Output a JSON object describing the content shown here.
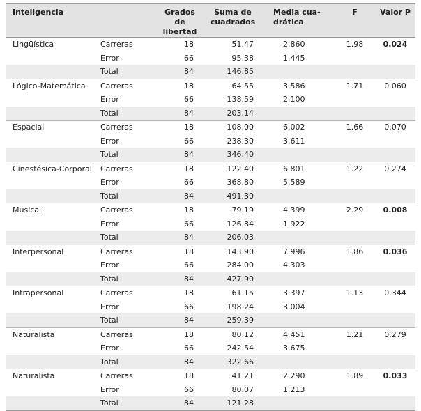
{
  "table": {
    "headers": [
      "Inteligencia",
      "Grados de libertad",
      "Suma de cuadrados",
      "Media cua-\ndrática",
      "F",
      "Valor P"
    ],
    "groups": [
      {
        "name": "Lingüística",
        "rows": [
          {
            "label": "Carreras",
            "df": "18",
            "ss": "51.47",
            "ms": "2.860"
          },
          {
            "label": "Error",
            "df": "66",
            "ss": "95.38",
            "ms": "1.445"
          },
          {
            "label": "Total",
            "df": "84",
            "ss": "146.85"
          }
        ],
        "f": "1.98",
        "p": "0.024",
        "p_bold": true
      },
      {
        "name": "Lógico-Matemática",
        "rows": [
          {
            "label": "Carreras",
            "df": "18",
            "ss": "64.55",
            "ms": "3.586"
          },
          {
            "label": "Error",
            "df": "66",
            "ss": "138.59",
            "ms": "2.100"
          },
          {
            "label": "Total",
            "df": "84",
            "ss": "203.14"
          }
        ],
        "f": "1.71",
        "p": "0.060",
        "p_bold": false
      },
      {
        "name": "Espacial",
        "rows": [
          {
            "label": "Carreras",
            "df": "18",
            "ss": "108.00",
            "ms": "6.002"
          },
          {
            "label": "Error",
            "df": "66",
            "ss": "238.30",
            "ms": "3.611"
          },
          {
            "label": "Total",
            "df": "84",
            "ss": "346.40"
          }
        ],
        "f": "1.66",
        "p": "0.070",
        "p_bold": false
      },
      {
        "name": "Cinestésica-Corporal",
        "rows": [
          {
            "label": "Carreras",
            "df": "18",
            "ss": "122.40",
            "ms": "6.801"
          },
          {
            "label": "Error",
            "df": "66",
            "ss": "368.80",
            "ms": "5.589"
          },
          {
            "label": "Total",
            "df": "84",
            "ss": "491.30"
          }
        ],
        "f": "1.22",
        "p": "0.274",
        "p_bold": false
      },
      {
        "name": "Musical",
        "rows": [
          {
            "label": "Carreras",
            "df": "18",
            "ss": "79.19",
            "ms": "4.399"
          },
          {
            "label": "Error",
            "df": "66",
            "ss": "126.84",
            "ms": "1.922"
          },
          {
            "label": "Total",
            "df": "84",
            "ss": "206.03"
          }
        ],
        "f": "2.29",
        "p": "0.008",
        "p_bold": true
      },
      {
        "name": "Interpersonal",
        "rows": [
          {
            "label": "Carreras",
            "df": "18",
            "ss": "143.90",
            "ms": "7.996"
          },
          {
            "label": "Error",
            "df": "66",
            "ss": "284.00",
            "ms": "4.303"
          },
          {
            "label": "Total",
            "df": "84",
            "ss": "427.90"
          }
        ],
        "f": "1.86",
        "p": "0.036",
        "p_bold": true
      },
      {
        "name": "Intrapersonal",
        "rows": [
          {
            "label": "Carreras",
            "df": "18",
            "ss": "61.15",
            "ms": "3.397"
          },
          {
            "label": "Error",
            "df": "66",
            "ss": "198.24",
            "ms": "3.004"
          },
          {
            "label": "Total",
            "df": "84",
            "ss": "259.39"
          }
        ],
        "f": "1.13",
        "p": "0.344",
        "p_bold": false
      },
      {
        "name": "Naturalista",
        "rows": [
          {
            "label": "Carreras",
            "df": "18",
            "ss": "80.12",
            "ms": "4.451"
          },
          {
            "label": "Error",
            "df": "66",
            "ss": "242.54",
            "ms": "3.675"
          },
          {
            "label": "Total",
            "df": "84",
            "ss": "322.66"
          }
        ],
        "f": "1.21",
        "p": "0.279",
        "p_bold": false
      },
      {
        "name": "Naturalista",
        "rows": [
          {
            "label": "Carreras",
            "df": "18",
            "ss": "41.21",
            "ms": "2.290"
          },
          {
            "label": "Error",
            "df": "66",
            "ss": "80.07",
            "ms": "1.213"
          },
          {
            "label": "Total",
            "df": "84",
            "ss": "121.28"
          }
        ],
        "f": "1.89",
        "p": "0.033",
        "p_bold": true
      }
    ]
  }
}
